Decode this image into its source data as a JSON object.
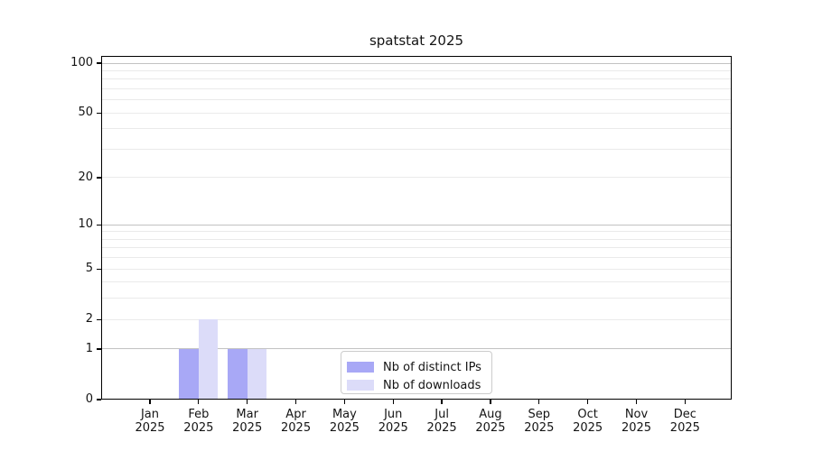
{
  "title": "spatstat 2025",
  "chart_data": {
    "type": "bar",
    "title": "spatstat 2025",
    "categories": [
      "Jan 2025",
      "Feb 2025",
      "Mar 2025",
      "Apr 2025",
      "May 2025",
      "Jun 2025",
      "Jul 2025",
      "Aug 2025",
      "Sep 2025",
      "Oct 2025",
      "Nov 2025",
      "Dec 2025"
    ],
    "x_months": [
      "Jan",
      "Feb",
      "Mar",
      "Apr",
      "May",
      "Jun",
      "Jul",
      "Aug",
      "Sep",
      "Oct",
      "Nov",
      "Dec"
    ],
    "x_year": "2025",
    "series": [
      {
        "name": "Nb of distinct IPs",
        "color": "#a8a8f6",
        "values": [
          0,
          1,
          1,
          0,
          0,
          0,
          0,
          0,
          0,
          0,
          0,
          0
        ]
      },
      {
        "name": "Nb of downloads",
        "color": "#dcdcf9",
        "values": [
          0,
          2,
          1,
          0,
          0,
          0,
          0,
          0,
          0,
          0,
          0,
          0
        ]
      }
    ],
    "y_scale": "log1p",
    "ylim": [
      0,
      110
    ],
    "y_ticks": [
      0,
      1,
      2,
      5,
      10,
      20,
      50,
      100
    ],
    "y_minor_gridlines": [
      2,
      3,
      4,
      5,
      6,
      7,
      8,
      9,
      20,
      30,
      40,
      50,
      60,
      70,
      80,
      90
    ],
    "y_major_gridlines": [
      1,
      10,
      100
    ],
    "grid": "horizontal",
    "legend_position": "lower-center-inside",
    "colors": {
      "background": "#ffffff",
      "axis": "#000000",
      "text": "#141414",
      "grid_minor": "#eaeaea",
      "grid_major": "#c2c2c2",
      "legend_border": "#cccccc"
    }
  },
  "legend": {
    "items": [
      "Nb of distinct IPs",
      "Nb of downloads"
    ]
  }
}
